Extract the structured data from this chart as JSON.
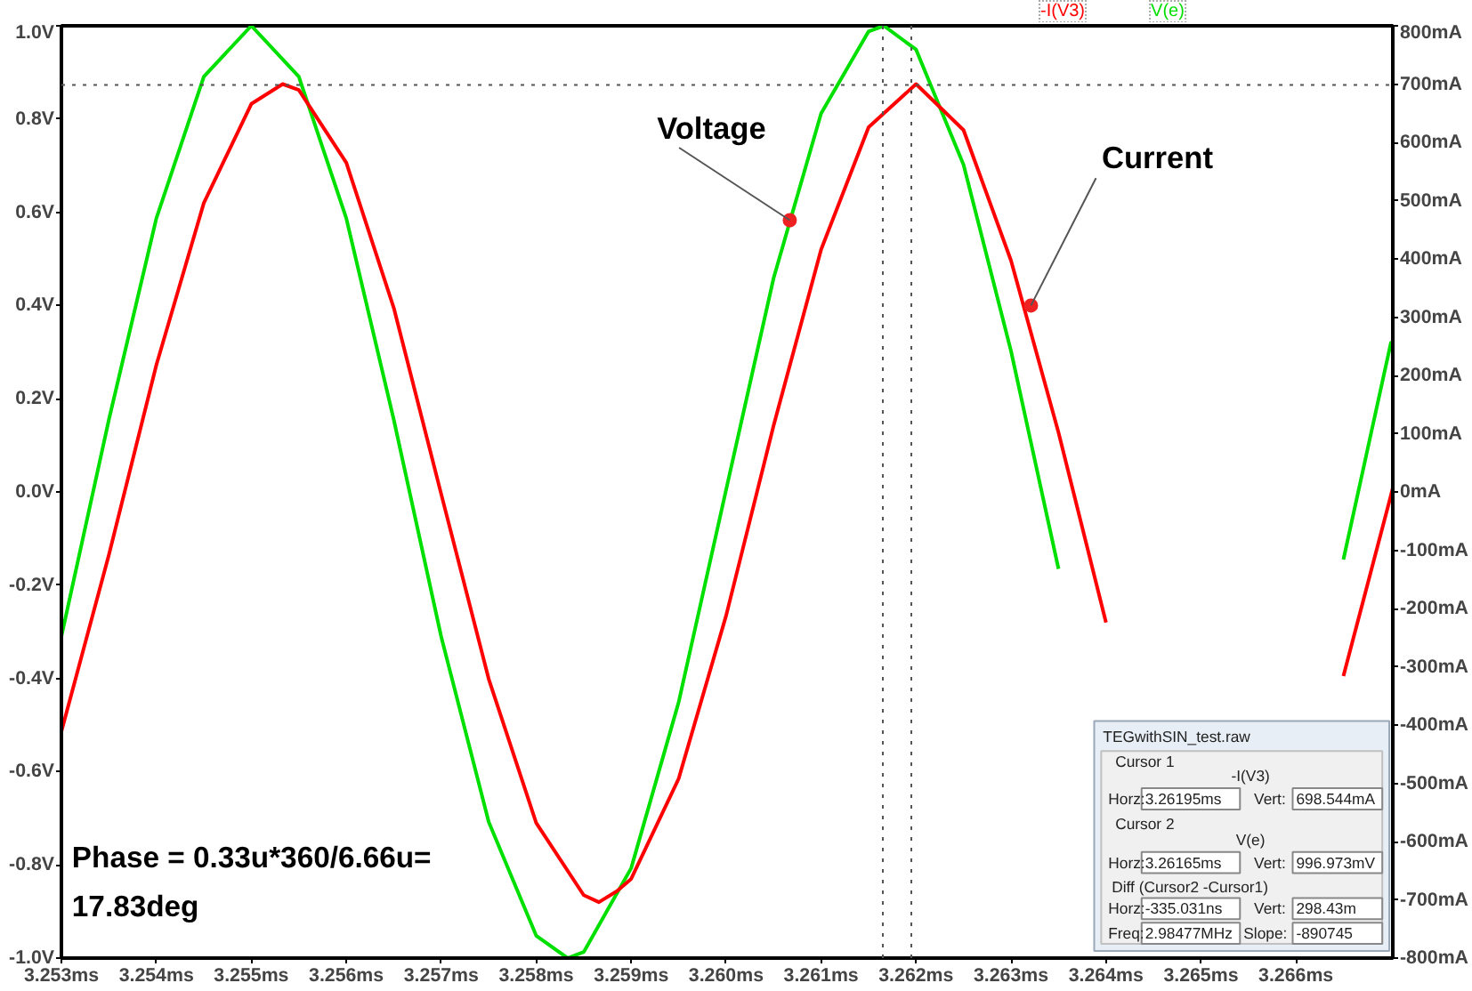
{
  "chart_data": [
    {
      "type": "line",
      "xlim": [
        3.253,
        3.26702
      ],
      "xticks": [
        {
          "value": 3.253,
          "label": "3.253ms"
        },
        {
          "value": 3.254,
          "label": "3.254ms"
        },
        {
          "value": 3.255,
          "label": "3.255ms"
        },
        {
          "value": 3.256,
          "label": "3.256ms"
        },
        {
          "value": 3.257,
          "label": "3.257ms"
        },
        {
          "value": 3.258,
          "label": "3.258ms"
        },
        {
          "value": 3.259,
          "label": "3.259ms"
        },
        {
          "value": 3.26,
          "label": "3.260ms"
        },
        {
          "value": 3.261,
          "label": "3.261ms"
        },
        {
          "value": 3.262,
          "label": "3.262ms"
        },
        {
          "value": 3.263,
          "label": "3.263ms"
        },
        {
          "value": 3.264,
          "label": "3.264ms"
        },
        {
          "value": 3.265,
          "label": "3.265ms"
        },
        {
          "value": 3.266,
          "label": "3.266ms"
        }
      ],
      "ylim": [
        -1.0,
        1.0
      ],
      "yticks": [
        {
          "value": 1.0,
          "label": "1.0V"
        },
        {
          "value": 0.8,
          "label": "0.8V"
        },
        {
          "value": 0.6,
          "label": "0.6V"
        },
        {
          "value": 0.4,
          "label": "0.4V"
        },
        {
          "value": 0.2,
          "label": "0.2V"
        },
        {
          "value": 0.0,
          "label": "0.0V"
        },
        {
          "value": -0.2,
          "label": "-0.2V"
        },
        {
          "value": -0.4,
          "label": "-0.4V"
        },
        {
          "value": -0.6,
          "label": "-0.6V"
        },
        {
          "value": -0.8,
          "label": "-0.8V"
        },
        {
          "value": -1.0,
          "label": "-1.0V"
        }
      ],
      "y2lim": [
        -800,
        800
      ],
      "y2ticks": [
        {
          "value": 800,
          "label": "800mA"
        },
        {
          "value": 700,
          "label": "700mA"
        },
        {
          "value": 600,
          "label": "600mA"
        },
        {
          "value": 500,
          "label": "500mA"
        },
        {
          "value": 400,
          "label": "400mA"
        },
        {
          "value": 300,
          "label": "300mA"
        },
        {
          "value": 200,
          "label": "200mA"
        },
        {
          "value": 100,
          "label": "100mA"
        },
        {
          "value": 0,
          "label": "0mA"
        },
        {
          "value": -100,
          "label": "-100mA"
        },
        {
          "value": -200,
          "label": "-200mA"
        },
        {
          "value": -300,
          "label": "-300mA"
        },
        {
          "value": -400,
          "label": "-400mA"
        },
        {
          "value": -500,
          "label": "-500mA"
        },
        {
          "value": -600,
          "label": "-600mA"
        },
        {
          "value": -700,
          "label": "-700mA"
        },
        {
          "value": -800,
          "label": "-800mA"
        }
      ],
      "grid": false,
      "legend": "top",
      "marker": "none",
      "line_style": "solid",
      "series": [
        {
          "name": "V(e)",
          "color": "#00e000",
          "x": [
            3.253,
            3.2535,
            3.254,
            3.2545,
            3.255,
            3.2555,
            3.256,
            3.2565,
            3.257,
            3.2575,
            3.258,
            3.25833,
            3.2585,
            3.259,
            3.2595,
            3.26,
            3.2605,
            3.261,
            3.2615,
            3.26166,
            3.262,
            3.2625,
            3.263,
            3.2635,
            3.264,
            3.2645,
            3.26499,
            3.265,
            3.2655,
            3.266,
            3.2665,
            3.267,
            3.26702
          ],
          "values": [
            -0.31,
            0.155,
            0.587,
            0.891,
            1.0,
            0.891,
            0.587,
            0.155,
            -0.311,
            -0.708,
            -0.952,
            -1.0,
            -0.987,
            -0.807,
            -0.451,
            0.005,
            0.459,
            0.812,
            0.988,
            1.0,
            0.949,
            0.702,
            0.302,
            -0.165,
            null,
            null,
            null,
            null,
            null,
            null,
            -0.145,
            0.32,
            0.3
          ]
        },
        {
          "name": "-I(V3)",
          "color": "#ff0000",
          "axis": "y2",
          "x": [
            3.253,
            3.2535,
            3.254,
            3.2545,
            3.255,
            3.25533,
            3.2555,
            3.256,
            3.2565,
            3.257,
            3.2575,
            3.258,
            3.2585,
            3.25866,
            3.25885,
            3.259,
            3.2595,
            3.26,
            3.2605,
            3.261,
            3.2615,
            3.262,
            3.2625,
            3.263,
            3.2635,
            3.264,
            3.2645,
            3.265,
            3.26532,
            3.2655,
            3.266,
            3.2665,
            3.267,
            3.26702
          ],
          "values": [
            -411,
            -108,
            218,
            496,
            666,
            700,
            690,
            565,
            316,
            -4,
            -321,
            -568,
            -692,
            -704,
            -685,
            -664,
            -492,
            -212,
            114,
            416,
            626,
            700,
            621,
            397,
            102,
            -224,
            null,
            null,
            null,
            null,
            null,
            -316,
            -6,
            7
          ]
        }
      ],
      "ref_lines": [
        {
          "axis": "x",
          "value": 3.26165,
          "color": "#555555",
          "line_style": "dotted"
        },
        {
          "axis": "x",
          "value": 3.26195,
          "color": "#555555",
          "line_style": "dotted"
        },
        {
          "axis": "y2",
          "value": 698.544,
          "color": "#555555",
          "line_style": "dotted"
        }
      ],
      "annotations": [
        {
          "text": "Voltage",
          "x": 3.26067,
          "y": 0.583
        },
        {
          "text": "Current",
          "x": 3.26321,
          "y": 0.4
        },
        "Phase = 0.33u*360/6.66u=\n17.83deg"
      ]
    },
    {
      "type": "other",
      "title": "TEGwithSIN_test.raw",
      "annotations": [
        "Cursor 1",
        "-I(V3)",
        "Horz:",
        "3.26195ms",
        "Vert:",
        "698.544mA",
        "Cursor 2",
        "V(e)",
        "Horz:",
        "3.26165ms",
        "Vert:",
        "996.973mV",
        "Diff (Cursor2 -Cursor1)",
        "Horz:",
        "-335.031ns",
        "Vert:",
        "298.43m",
        "Freq:",
        "2.98477MHz",
        "Slope:",
        "-890745"
      ]
    }
  ]
}
